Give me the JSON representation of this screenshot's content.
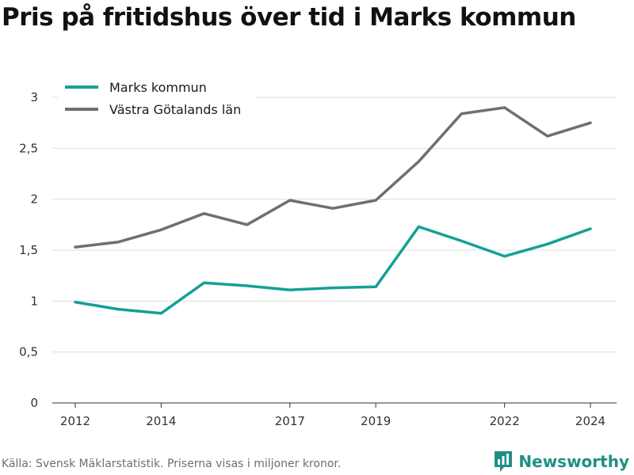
{
  "title": "Pris på fritidshus över tid i Marks kommun",
  "source": "Källa: Svensk Mäklarstatistik. Priserna visas i miljoner kronor.",
  "brand": {
    "name": "Newsworthy",
    "icon": "newsworthy-logo-icon",
    "color": "#1f8f86"
  },
  "chart_data": {
    "type": "line",
    "x": [
      2012,
      2013,
      2014,
      2015,
      2016,
      2017,
      2018,
      2019,
      2020,
      2021,
      2022,
      2023,
      2024
    ],
    "x_ticks": [
      2012,
      2014,
      2017,
      2019,
      2022,
      2024
    ],
    "x_tick_labels": [
      "2012",
      "2014",
      "2017",
      "2019",
      "2022",
      "2024"
    ],
    "y_ticks": [
      0,
      0.5,
      1,
      1.5,
      2,
      2.5,
      3
    ],
    "y_tick_labels": [
      "0",
      "0,5",
      "1",
      "1,5",
      "2",
      "2,5",
      "3"
    ],
    "ylim": [
      0,
      3
    ],
    "xlabel": "",
    "ylabel": "",
    "grid": true,
    "legend_position": "top-left",
    "series": [
      {
        "name": "Marks kommun",
        "color": "#14a096",
        "values": [
          0.99,
          0.92,
          0.88,
          1.18,
          1.15,
          1.11,
          1.13,
          1.14,
          1.73,
          1.59,
          1.44,
          1.56,
          1.71
        ]
      },
      {
        "name": "Västra Götalands län",
        "color": "#6f6f73",
        "values": [
          1.53,
          1.58,
          1.7,
          1.86,
          1.75,
          1.99,
          1.91,
          1.99,
          2.37,
          2.84,
          2.9,
          2.62,
          2.75
        ]
      }
    ]
  }
}
